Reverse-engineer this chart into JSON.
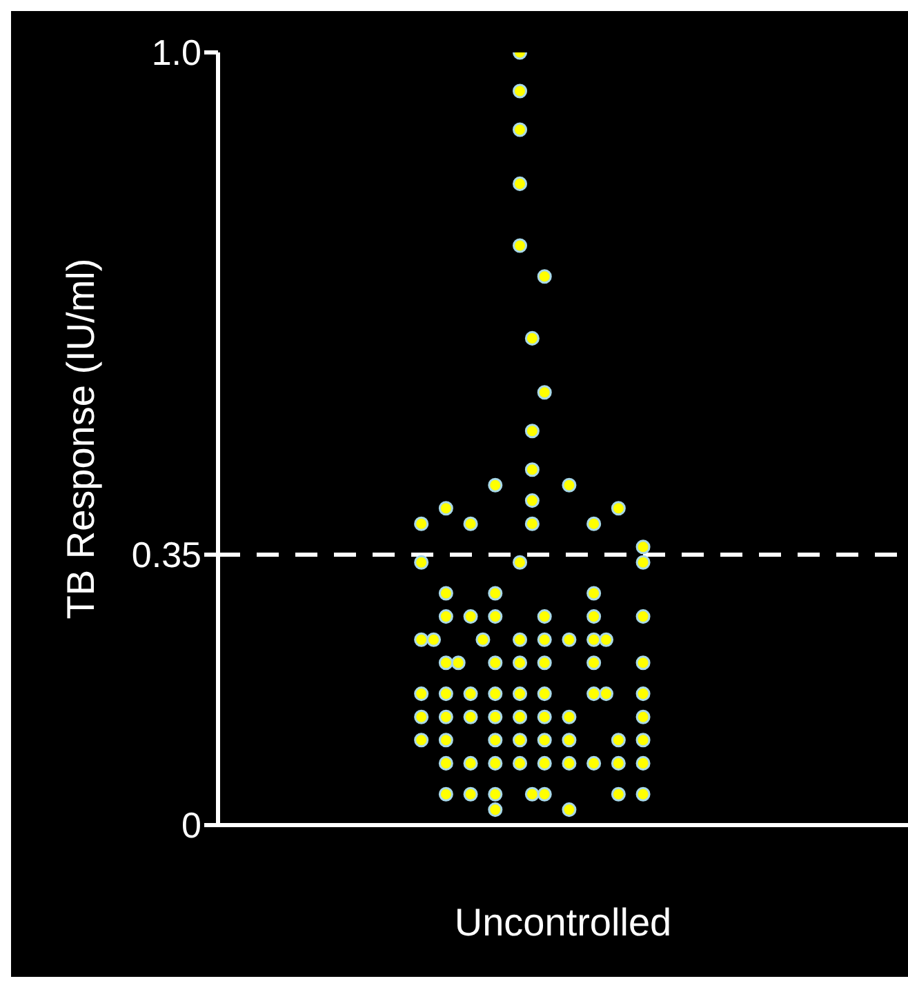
{
  "chart_data": {
    "type": "scatter",
    "xlabel": "Uncontrolled",
    "ylabel": "TB Response (IU/ml)",
    "categories": [
      null,
      null,
      null,
      null,
      null,
      null,
      null,
      null,
      null,
      null,
      null,
      null,
      null,
      null,
      null,
      null,
      null,
      null,
      null,
      null,
      null,
      null,
      null,
      null,
      null,
      null,
      null,
      null,
      null,
      null,
      null,
      null,
      null,
      null,
      null,
      null,
      null,
      null,
      null,
      null,
      null,
      null,
      null,
      null,
      null,
      null,
      null,
      null,
      null,
      null,
      null,
      null,
      null,
      null,
      null,
      null
    ],
    "ylim": [
      0,
      1.0
    ],
    "yticks": [
      0,
      0.35,
      {
        "value": 1.0,
        "label": "1.0"
      }
    ],
    "tick_labels": "y",
    "marker": "circle",
    "ref_lines": [
      {
        "axis": "y",
        "value": 0.35,
        "color": "#ffffff",
        "line_style": "dashed"
      }
    ],
    "series": [
      {
        "color": "#ffff00",
        "values": [
          null,
          null,
          null,
          null,
          null,
          null,
          null,
          null,
          null,
          null,
          null,
          null,
          null,
          null,
          null,
          null,
          0.39,
          0.24,
          0.41,
          0.21,
          0.39,
          0.24,
          0.44,
          null,
          1.0,
          0.63,
          0.71,
          null,
          0.44,
          null,
          0.39,
          0.24,
          0.41,
          null,
          0.36,
          null,
          null,
          null,
          null,
          null,
          null,
          null,
          null,
          null,
          null,
          null,
          null,
          null,
          null,
          null,
          null,
          null,
          null,
          null,
          null,
          null
        ]
      },
      {
        "color": "#ffff00",
        "values": [
          null,
          null,
          null,
          null,
          null,
          null,
          null,
          null,
          null,
          null,
          null,
          null,
          null,
          null,
          null,
          null,
          0.34,
          null,
          0.3,
          null,
          0.27,
          null,
          0.3,
          null,
          0.95,
          0.51,
          0.56,
          null,
          0.24,
          null,
          0.3,
          0.17,
          0.11,
          null,
          0.34,
          null,
          null,
          null,
          null,
          null,
          null,
          null,
          null,
          null,
          null,
          null,
          null,
          null,
          null,
          null,
          null,
          null,
          null,
          null,
          null,
          null
        ]
      },
      {
        "color": "#ffff00",
        "values": [
          null,
          null,
          null,
          null,
          null,
          null,
          null,
          null,
          null,
          null,
          null,
          null,
          null,
          null,
          null,
          null,
          0.24,
          null,
          0.27,
          null,
          0.17,
          null,
          0.27,
          null,
          0.9,
          0.46,
          0.27,
          null,
          0.14,
          null,
          0.27,
          null,
          0.08,
          null,
          0.27,
          null,
          null,
          null,
          null,
          null,
          null,
          null,
          null,
          null,
          null,
          null,
          null,
          null,
          null,
          null,
          null,
          null,
          null,
          null,
          null,
          null
        ]
      },
      {
        "color": "#ffff00",
        "values": [
          null,
          null,
          null,
          null,
          null,
          null,
          null,
          null,
          null,
          null,
          null,
          null,
          null,
          null,
          null,
          null,
          0.17,
          null,
          0.21,
          null,
          0.14,
          null,
          0.21,
          null,
          0.83,
          0.42,
          0.24,
          null,
          0.11,
          null,
          0.24,
          null,
          0.04,
          null,
          0.21,
          null,
          null,
          null,
          null,
          null,
          null,
          null,
          null,
          null,
          null,
          null,
          null,
          null,
          null,
          null,
          null,
          null,
          null,
          null,
          null,
          null
        ]
      },
      {
        "color": "#ffff00",
        "values": [
          null,
          null,
          null,
          null,
          null,
          null,
          null,
          null,
          null,
          null,
          null,
          null,
          null,
          null,
          null,
          null,
          0.14,
          null,
          0.17,
          null,
          0.08,
          null,
          0.17,
          null,
          0.75,
          0.39,
          0.21,
          null,
          0.08,
          null,
          0.21,
          null,
          null,
          null,
          0.17,
          null,
          null,
          null,
          null,
          null,
          null,
          null,
          null,
          null,
          null,
          null,
          null,
          null,
          null,
          null,
          null,
          null,
          null,
          null,
          null,
          null
        ]
      },
      {
        "color": "#ffff00",
        "values": [
          null,
          null,
          null,
          null,
          null,
          null,
          null,
          null,
          null,
          null,
          null,
          null,
          null,
          null,
          null,
          null,
          0.11,
          null,
          0.14,
          null,
          0.04,
          null,
          0.14,
          null,
          0.34,
          0.04,
          0.17,
          null,
          0.02,
          null,
          0.17,
          null,
          null,
          null,
          0.14,
          null,
          null,
          null,
          null,
          null,
          null,
          null,
          null,
          null,
          null,
          null,
          null,
          null,
          null,
          null,
          null,
          null,
          null,
          null,
          null,
          null
        ]
      },
      {
        "color": "#ffff00",
        "values": [
          null,
          null,
          null,
          null,
          null,
          null,
          null,
          null,
          null,
          null,
          null,
          null,
          null,
          null,
          null,
          null,
          null,
          null,
          0.11,
          null,
          null,
          null,
          0.11,
          null,
          0.24,
          null,
          0.14,
          null,
          null,
          null,
          0.08,
          null,
          null,
          null,
          0.11,
          null,
          null,
          null,
          null,
          null,
          null,
          null,
          null,
          null,
          null,
          null,
          null,
          null,
          null,
          null,
          null,
          null,
          null,
          null,
          null,
          null
        ]
      },
      {
        "color": "#ffff00",
        "values": [
          null,
          null,
          null,
          null,
          null,
          null,
          null,
          null,
          null,
          null,
          null,
          null,
          null,
          null,
          null,
          null,
          null,
          null,
          0.08,
          null,
          null,
          null,
          0.08,
          null,
          0.21,
          null,
          0.11,
          null,
          null,
          null,
          null,
          null,
          null,
          null,
          0.08,
          null,
          null,
          null,
          null,
          null,
          null,
          null,
          null,
          null,
          null,
          null,
          null,
          null,
          null,
          null,
          null,
          null,
          null,
          null,
          null,
          null
        ]
      },
      {
        "color": "#ffff00",
        "values": [
          null,
          null,
          null,
          null,
          null,
          null,
          null,
          null,
          null,
          null,
          null,
          null,
          null,
          null,
          null,
          null,
          null,
          null,
          0.04,
          null,
          null,
          null,
          0.04,
          null,
          0.17,
          null,
          0.08,
          null,
          null,
          null,
          null,
          null,
          null,
          null,
          0.04,
          null,
          null,
          null,
          null,
          null,
          null,
          null,
          null,
          null,
          null,
          null,
          null,
          null,
          null,
          null,
          null,
          null,
          null,
          null,
          null,
          null
        ]
      },
      {
        "color": "#ffff00",
        "values": [
          null,
          null,
          null,
          null,
          null,
          null,
          null,
          null,
          null,
          null,
          null,
          null,
          null,
          null,
          null,
          null,
          null,
          null,
          null,
          null,
          null,
          null,
          0.02,
          null,
          0.14,
          null,
          0.04,
          null,
          null,
          null,
          null,
          null,
          null,
          null,
          null,
          null,
          null,
          null,
          null,
          null,
          null,
          null,
          null,
          null,
          null,
          null,
          null,
          null,
          null,
          null,
          null,
          null,
          null,
          null,
          null,
          null
        ]
      },
      {
        "color": "#ffff00",
        "values": [
          null,
          null,
          null,
          null,
          null,
          null,
          null,
          null,
          null,
          null,
          null,
          null,
          null,
          null,
          null,
          null,
          null,
          null,
          null,
          null,
          null,
          null,
          null,
          null,
          0.11,
          null,
          null,
          null,
          null,
          null,
          null,
          null,
          null,
          null,
          null,
          null,
          null,
          null,
          null,
          null,
          null,
          null,
          null,
          null,
          null,
          null,
          null,
          null,
          null,
          null,
          null,
          null,
          null,
          null,
          null,
          null
        ]
      },
      {
        "color": "#ffff00",
        "values": [
          null,
          null,
          null,
          null,
          null,
          null,
          null,
          null,
          null,
          null,
          null,
          null,
          null,
          null,
          null,
          null,
          null,
          null,
          null,
          null,
          null,
          null,
          null,
          null,
          0.08,
          null,
          null,
          null,
          null,
          null,
          null,
          null,
          null,
          null,
          null,
          null,
          null,
          null,
          null,
          null,
          null,
          null,
          null,
          null,
          null,
          null,
          null,
          null,
          null,
          null,
          null,
          null,
          null,
          null,
          null,
          null
        ]
      }
    ]
  }
}
